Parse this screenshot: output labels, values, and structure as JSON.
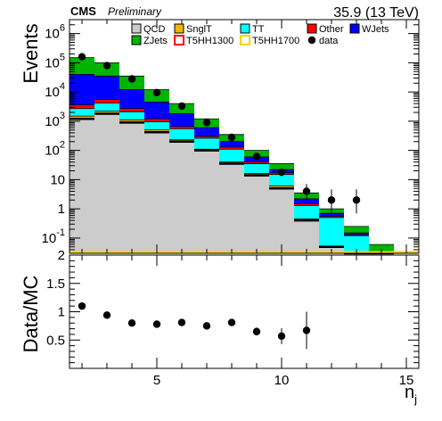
{
  "header": {
    "experiment": "CMS",
    "status": "Preliminary",
    "lumi": "35.9 (13 TeV)"
  },
  "chart_data": [
    {
      "type": "stacked-histogram",
      "ylabel": "Events",
      "yscale": "log",
      "ylim": [
        0.03,
        3000000
      ],
      "xlim": [
        1.5,
        15.5
      ],
      "bins": [
        2,
        3,
        4,
        5,
        6,
        7,
        8,
        9,
        10,
        11,
        12,
        13,
        14
      ],
      "yticks": [
        {
          "value": 1000000,
          "base": "10",
          "exp": "6"
        },
        {
          "value": 100000,
          "base": "10",
          "exp": "5"
        },
        {
          "value": 10000,
          "base": "10",
          "exp": "4"
        },
        {
          "value": 1000,
          "base": "10",
          "exp": "3"
        },
        {
          "value": 100,
          "base": "10",
          "exp": "2"
        },
        {
          "value": 10,
          "base": "10",
          "exp": ""
        },
        {
          "value": 1,
          "base": "1",
          "exp": ""
        },
        {
          "value": 0.1,
          "base": "10",
          "exp": "-1"
        }
      ],
      "stack_cumulative": [
        {
          "name": "QCD",
          "color": "#cccccc",
          "values": [
            1200,
            1800,
            900,
            420,
            200,
            100,
            35,
            14,
            5,
            0.4,
            0.05,
            0.03,
            0.03
          ]
        },
        {
          "name": "SnglT",
          "color": "#f0b400",
          "values": [
            1500,
            2200,
            1100,
            500,
            230,
            110,
            40,
            16,
            6,
            0.45,
            0.05,
            0.03,
            0.03
          ]
        },
        {
          "name": "TT",
          "color": "#00ffff",
          "values": [
            2700,
            4200,
            2100,
            950,
            550,
            260,
            110,
            35,
            15,
            1.3,
            0.5,
            0.12,
            0.03
          ]
        },
        {
          "name": "Other",
          "color": "#ff0000",
          "values": [
            3600,
            5500,
            2700,
            1200,
            650,
            300,
            130,
            40,
            17,
            1.5,
            0.55,
            0.13,
            0.03
          ]
        },
        {
          "name": "WJets",
          "color": "#0000ff",
          "values": [
            40000,
            35000,
            12000,
            4500,
            1800,
            600,
            200,
            60,
            22,
            2.2,
            0.7,
            0.15,
            0.03
          ]
        },
        {
          "name": "ZJets",
          "color": "#00b400",
          "values": [
            150000,
            100000,
            35000,
            12000,
            4000,
            1200,
            350,
            100,
            35,
            3.5,
            1.0,
            0.25,
            0.06
          ]
        }
      ],
      "signals": [
        {
          "name": "T5HH1300",
          "color": "#ff0000"
        },
        {
          "name": "T5HH1700",
          "color": "#ffd200"
        }
      ],
      "data": {
        "name": "data",
        "x": [
          2,
          3,
          4,
          5,
          6,
          7,
          8,
          9,
          10,
          11,
          12,
          13
        ],
        "y": [
          160000,
          80000,
          28000,
          9500,
          3300,
          900,
          280,
          62,
          18,
          4,
          2,
          2
        ],
        "err_low": [
          0,
          0,
          0,
          0,
          0,
          0,
          0,
          0,
          5,
          2,
          1.3,
          1.3
        ],
        "err_high": [
          0,
          0,
          0,
          0,
          0,
          0,
          0,
          0,
          6,
          3.1,
          2.6,
          2.6
        ]
      },
      "legend": [
        {
          "name": "QCD",
          "kind": "fill",
          "color": "#cccccc"
        },
        {
          "name": "SnglT",
          "kind": "fill",
          "color": "#f0b400"
        },
        {
          "name": "TT",
          "kind": "fill",
          "color": "#00ffff"
        },
        {
          "name": "Other",
          "kind": "fill",
          "color": "#ff0000"
        },
        {
          "name": "WJets",
          "kind": "fill",
          "color": "#0000ff"
        },
        {
          "name": "ZJets",
          "kind": "fill",
          "color": "#00b400"
        },
        {
          "name": "T5HH1300",
          "kind": "line",
          "color": "#ff0000"
        },
        {
          "name": "T5HH1700",
          "kind": "line",
          "color": "#ffd200"
        },
        {
          "name": "data",
          "kind": "marker",
          "color": "#000000"
        }
      ]
    },
    {
      "type": "scatter",
      "ylabel": "Data/MC",
      "xlabel": "n",
      "xlabel_sub": "j",
      "xlim": [
        1.5,
        15.5
      ],
      "ylim": [
        0,
        2
      ],
      "yticks": [
        "0.5",
        "1",
        "1.5",
        "2"
      ],
      "xticks": [
        "5",
        "10",
        "15"
      ],
      "points": {
        "x": [
          2,
          3,
          4,
          5,
          6,
          7,
          8,
          9,
          10,
          11
        ],
        "y": [
          1.1,
          0.94,
          0.8,
          0.78,
          0.81,
          0.75,
          0.81,
          0.65,
          0.57,
          0.67
        ],
        "err": [
          0.02,
          0.02,
          0.02,
          0.02,
          0.03,
          0.04,
          0.05,
          0.07,
          0.14,
          0.33
        ]
      }
    }
  ]
}
